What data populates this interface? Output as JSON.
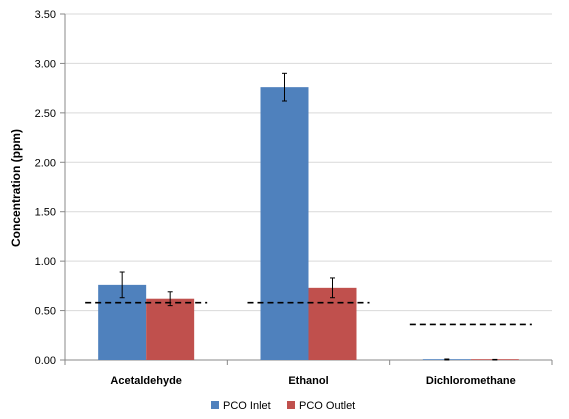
{
  "chart_data": {
    "type": "bar",
    "categories": [
      "Acetaldehyde",
      "Ethanol",
      "Dichloromethane"
    ],
    "ylabel": "Concentration (ppm)",
    "ylim": [
      0,
      3.5
    ],
    "yticks": [
      "0.00",
      "0.50",
      "1.00",
      "1.50",
      "2.00",
      "2.50",
      "3.00",
      "3.50"
    ],
    "grid": true,
    "legend_position": "bottom",
    "series": [
      {
        "name": "PCO Inlet",
        "color": "#4F81BD",
        "values": [
          0.76,
          2.76,
          0.005
        ],
        "errors": [
          0.13,
          0.14,
          0.005
        ]
      },
      {
        "name": "PCO Outlet",
        "color": "#C0504D",
        "values": [
          0.62,
          0.73,
          0.002
        ],
        "errors": [
          0.07,
          0.1,
          0.004
        ]
      }
    ],
    "reference_lines": [
      {
        "category": "Acetaldehyde",
        "value": 0.58
      },
      {
        "category": "Ethanol",
        "value": 0.58
      },
      {
        "category": "Dichloromethane",
        "value": 0.36
      }
    ]
  }
}
